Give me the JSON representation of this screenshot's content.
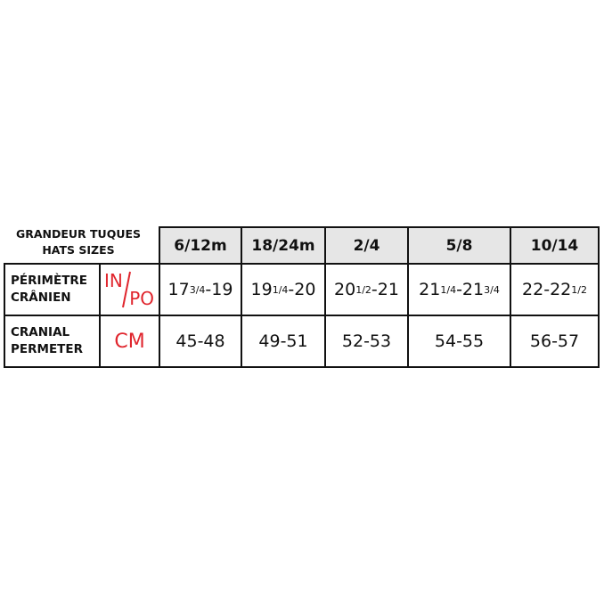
{
  "header": {
    "title_lines": [
      "GRANDEUR TUQUES",
      "HATS SIZES"
    ],
    "sizes": [
      "6/12m",
      "18/24m",
      "2/4",
      "5/8",
      "10/14"
    ]
  },
  "rows": [
    {
      "label_lines": [
        "PÉRIMÈTRE",
        "CRÂNIEN"
      ],
      "unit": [
        "IN",
        "PO"
      ],
      "cells": [
        [
          "17",
          "3/4",
          "-19"
        ],
        [
          "19",
          "1/4",
          "-20"
        ],
        [
          "20",
          "1/2",
          "-21"
        ],
        [
          "21",
          "1/4",
          "-21",
          "3/4"
        ],
        [
          "22-22",
          "1/2"
        ]
      ]
    },
    {
      "label_lines": [
        "CRANIAL",
        "PERMETER"
      ],
      "unit": [
        "CM"
      ],
      "cells": [
        [
          "45-48"
        ],
        [
          "49-51"
        ],
        [
          "52-53"
        ],
        [
          "54-55"
        ],
        [
          "56-57"
        ]
      ]
    }
  ]
}
